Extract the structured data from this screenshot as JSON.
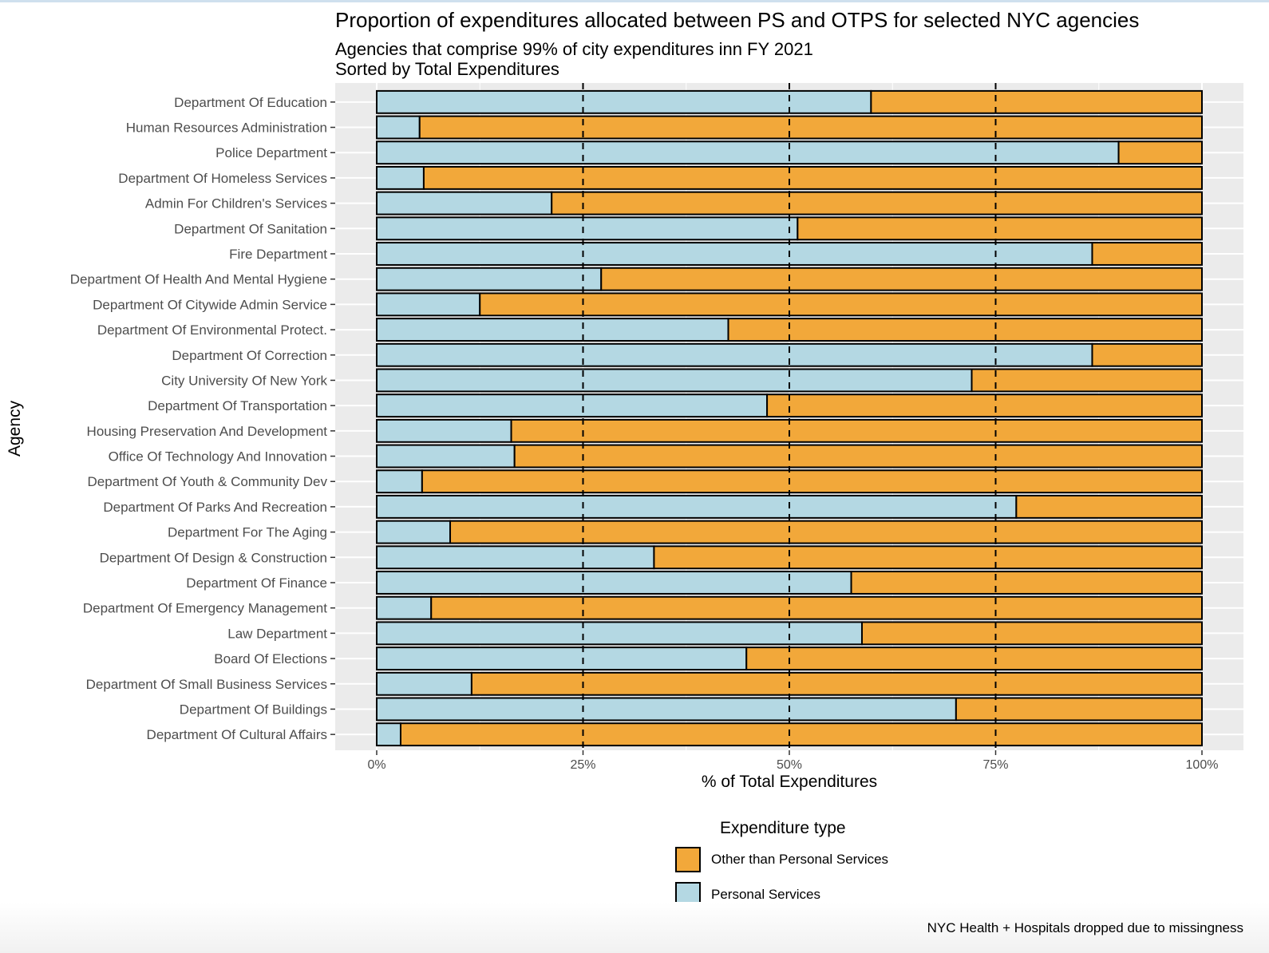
{
  "title": "Proportion of expenditures allocated between PS and OTPS for selected NYC agencies",
  "subtitle_lines": [
    "Agencies that comprise 99% of city expenditures inn FY 2021",
    "Sorted by Total Expenditures"
  ],
  "caption": "NYC Health + Hospitals dropped due to missingness",
  "colors": {
    "ps": "#b4d8e3",
    "otps": "#f2a83a",
    "panel": "#ebebeb",
    "gridline": "#ffffff",
    "outline": "#000000",
    "tick_text": "#4d4d4d"
  },
  "legend": {
    "title": "Expenditure type",
    "items": [
      {
        "label": "Other than Personal Services",
        "color": "#f2a83a"
      },
      {
        "label": "Personal Services",
        "color": "#b4d8e3"
      }
    ]
  },
  "chart_data": {
    "type": "bar",
    "orientation": "horizontal",
    "stacked": "percent",
    "title": "Proportion of expenditures allocated between PS and OTPS for selected NYC agencies",
    "xlabel": "% of Total Expenditures",
    "ylabel": "Agency",
    "xlim": [
      0,
      100
    ],
    "x_ticks": [
      "0%",
      "25%",
      "50%",
      "75%",
      "100%"
    ],
    "x_tick_values": [
      0,
      25,
      50,
      75,
      100
    ],
    "reference_lines": [
      25,
      50,
      75
    ],
    "reference_line_style": "dashed",
    "grid": true,
    "legend_position": "bottom",
    "categories": [
      "Department Of Education",
      "Human Resources Administration",
      "Police Department",
      "Department Of Homeless Services",
      "Admin For Children's Services",
      "Department Of Sanitation",
      "Fire Department",
      "Department Of Health And Mental Hygiene",
      "Department Of Citywide Admin Service",
      "Department Of Environmental Protect.",
      "Department Of Correction",
      "City University Of New York",
      "Department Of Transportation",
      "Housing Preservation And Development",
      "Office Of Technology And Innovation",
      "Department Of Youth & Community Dev",
      "Department Of Parks And Recreation",
      "Department For The Aging",
      "Department Of Design & Construction",
      "Department Of Finance",
      "Department Of Emergency Management",
      "Law Department",
      "Board Of Elections",
      "Department Of Small Business Services",
      "Department Of Buildings",
      "Department Of Cultural Affairs"
    ],
    "series": [
      {
        "name": "Personal Services",
        "values": [
          59.9,
          5.2,
          89.9,
          5.7,
          21.2,
          51.0,
          86.7,
          27.2,
          12.5,
          42.6,
          86.7,
          72.1,
          47.3,
          16.3,
          16.7,
          5.5,
          77.5,
          8.9,
          33.6,
          57.5,
          6.6,
          58.8,
          44.8,
          11.5,
          70.2,
          2.9
        ]
      },
      {
        "name": "Other than Personal Services",
        "values": [
          40.1,
          94.8,
          10.1,
          94.3,
          78.8,
          49.0,
          13.3,
          72.8,
          87.5,
          57.4,
          13.3,
          27.9,
          52.7,
          83.7,
          83.3,
          94.5,
          22.5,
          91.1,
          66.4,
          42.5,
          93.4,
          41.2,
          55.2,
          88.5,
          29.8,
          97.1
        ]
      }
    ]
  }
}
